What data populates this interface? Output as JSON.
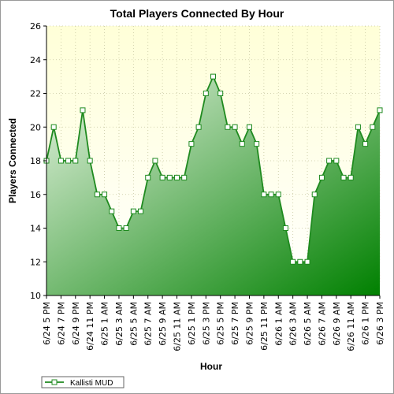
{
  "chart_data": {
    "type": "area",
    "title": "Total Players Connected By Hour",
    "xlabel": "Hour",
    "ylabel": "Players Connected",
    "ylim": [
      10,
      26
    ],
    "yticks": [
      10,
      12,
      14,
      16,
      18,
      20,
      22,
      24,
      26
    ],
    "grid": true,
    "legend_position": "bottom-left",
    "colors": {
      "line": "#1f8a1f",
      "fill_light": "#e8f4e3",
      "fill_dark": "#008000",
      "background_top": "#ffffd8",
      "background_bottom": "#ffffff",
      "grid": "#c8c8a0"
    },
    "xtick_labels": [
      "6/24 5 PM",
      "6/24 7 PM",
      "6/24 9 PM",
      "6/24 11 PM",
      "6/25 1 AM",
      "6/25 3 AM",
      "6/25 5 AM",
      "6/25 7 AM",
      "6/25 9 AM",
      "6/25 11 AM",
      "6/25 1 PM",
      "6/25 3 PM",
      "6/25 5 PM",
      "6/25 7 PM",
      "6/25 9 PM",
      "6/25 11 PM",
      "6/26 1 AM",
      "6/26 3 AM",
      "6/26 5 AM",
      "6/26 7 AM",
      "6/26 9 AM",
      "6/26 11 AM",
      "6/26 1 PM",
      "6/26 3 PM"
    ],
    "series": [
      {
        "name": "Kallisti MUD",
        "values": [
          18,
          20,
          18,
          18,
          18,
          21,
          18,
          16,
          16,
          15,
          14,
          14,
          15,
          15,
          17,
          18,
          17,
          17,
          17,
          17,
          19,
          20,
          22,
          23,
          22,
          20,
          20,
          19,
          20,
          19,
          16,
          16,
          16,
          14,
          12,
          12,
          12,
          16,
          17,
          18,
          18,
          17,
          17,
          20,
          19,
          20,
          21
        ]
      }
    ]
  }
}
